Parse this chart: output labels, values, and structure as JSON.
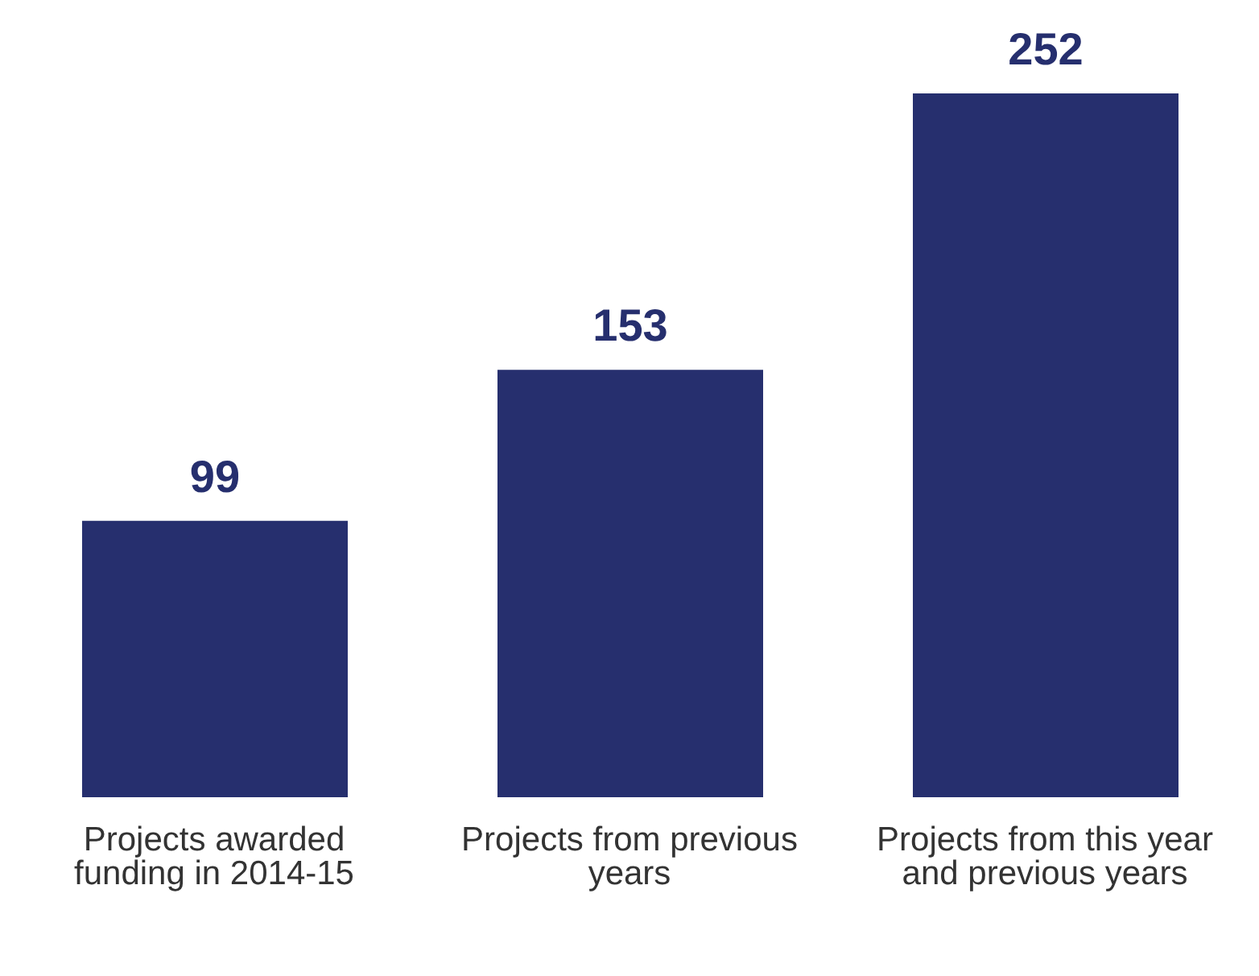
{
  "chart_data": {
    "type": "bar",
    "categories": [
      "Projects awarded funding in 2014-15",
      "Projects from previous years",
      "Projects from this year and previous years"
    ],
    "values": [
      99,
      153,
      252
    ],
    "color": "#262f6e",
    "data_labels": true,
    "grid": false,
    "legend": false
  }
}
